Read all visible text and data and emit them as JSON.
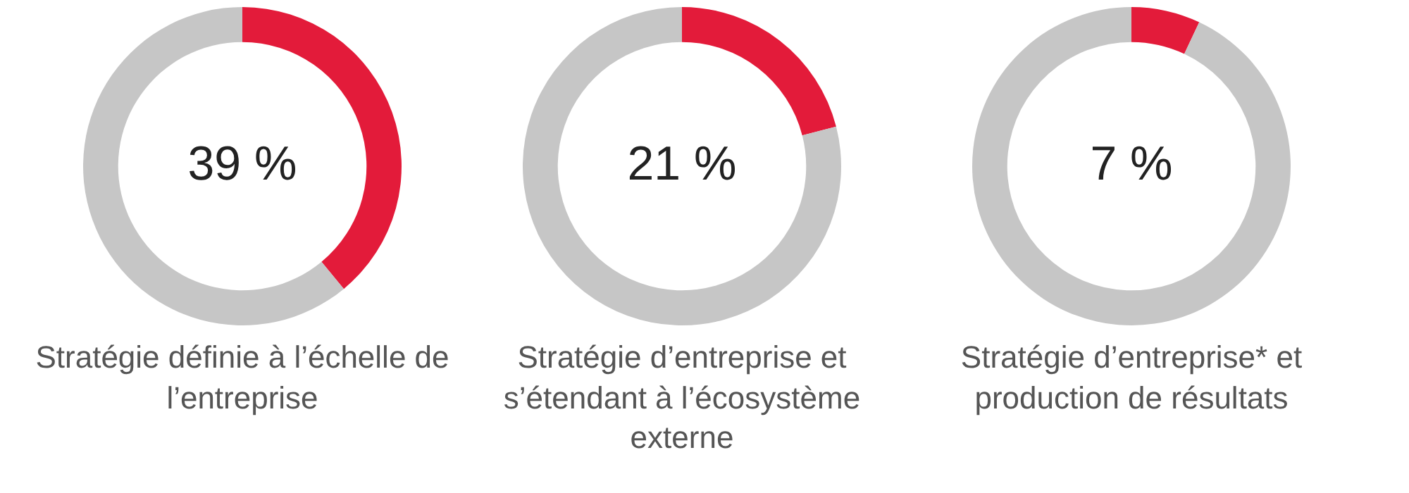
{
  "chart_data": [
    {
      "type": "donut",
      "title": "Stratégie définie à l’échelle de l’entreprise",
      "categories": [
        null,
        null
      ],
      "values": [
        39,
        61
      ],
      "colors": [
        "#e31b3a",
        "#c6c6c6"
      ],
      "value_labels": [
        "39 %",
        null
      ]
    },
    {
      "type": "donut",
      "title": "Stratégie d’entreprise et s’étendant à l’écosystème externe",
      "categories": [
        null,
        null
      ],
      "values": [
        21,
        79
      ],
      "colors": [
        "#e31b3a",
        "#c6c6c6"
      ],
      "value_labels": [
        "21 %",
        null
      ]
    },
    {
      "type": "donut",
      "title": "Stratégie d’entreprise* et production de résultats",
      "categories": [
        null,
        null
      ],
      "values": [
        7,
        93
      ],
      "colors": [
        "#e31b3a",
        "#c6c6c6"
      ],
      "value_labels": [
        "7 %",
        null
      ]
    }
  ]
}
